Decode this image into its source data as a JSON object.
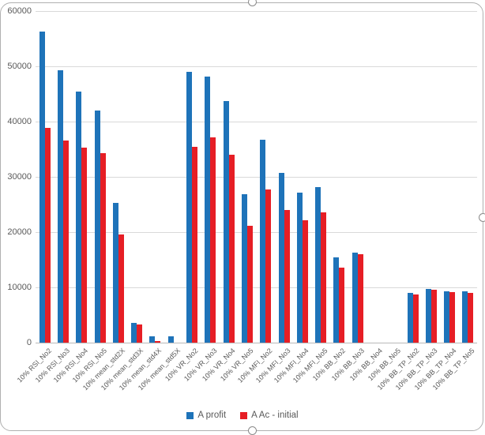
{
  "chart_data": {
    "type": "bar",
    "title": "",
    "xlabel": "",
    "ylabel": "",
    "categories": [
      "10% RSI_No2",
      "10% RSI_No3",
      "10% RSI_No4",
      "10% RSI_No5",
      "10% mean_std2X",
      "10% mean_std3X",
      "10% mean_std4X",
      "10% mean_std5X",
      "10% VR_No2",
      "10% VR_No3",
      "10% VR_No4",
      "10% VR_No5",
      "10% MFI_No2",
      "10% MFI_No3",
      "10% MFI_No4",
      "10% MFI_No5",
      "10% BB_No2",
      "10% BB_No3",
      "10% BB_No4",
      "10% BB_No5",
      "10% BB_TP_No2",
      "10% BB_TP_No3",
      "10% BB_TP_No4",
      "10% BB_TP_No5"
    ],
    "series": [
      {
        "name": "A profit",
        "color": "#1e73b9",
        "values": [
          56400,
          49400,
          45600,
          42100,
          25400,
          3700,
          1300,
          1300,
          49100,
          48300,
          43800,
          27000,
          36800,
          30800,
          27300,
          28300,
          15600,
          16400,
          0,
          0,
          9100,
          9900,
          9500,
          9400
        ]
      },
      {
        "name": "A Ac - initial",
        "color": "#e61e25",
        "values": [
          39000,
          36700,
          35400,
          34400,
          19700,
          3400,
          500,
          200,
          35600,
          37300,
          34100,
          21300,
          27900,
          24100,
          22300,
          23700,
          13700,
          16100,
          0,
          0,
          8800,
          9700,
          9300,
          9200
        ]
      }
    ],
    "ylim": [
      0,
      60000
    ],
    "ytick_step": 10000,
    "ytick_labels": [
      "0",
      "10000",
      "20000",
      "30000",
      "40000",
      "50000",
      "60000"
    ],
    "grid": true,
    "legend_position": "bottom"
  },
  "colors": {
    "gridline": "#d9d9d9",
    "axis_line": "#b8b8b8",
    "tick_text": "#595959",
    "selection_border": "#b0b0b0",
    "background": "#ffffff"
  }
}
